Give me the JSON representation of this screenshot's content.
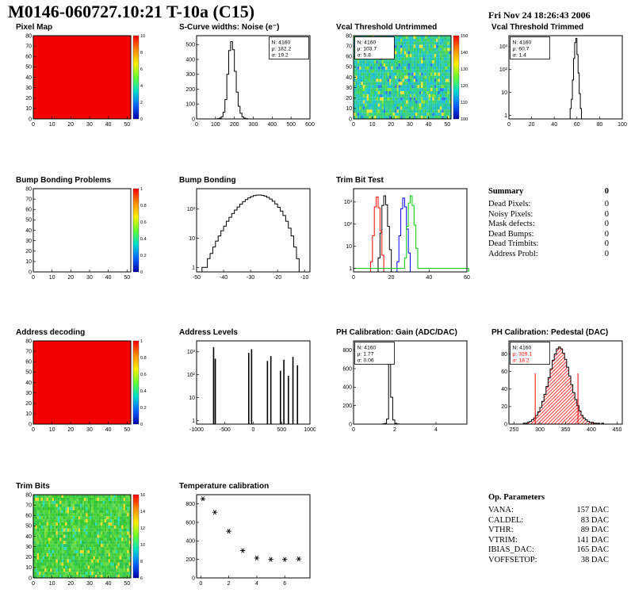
{
  "header": {
    "title": "M0146-060727.10:21 T-10a (C15)",
    "date": "Fri Nov 24 18:26:43 2006"
  },
  "summary": {
    "title": "Summary",
    "total": "0",
    "items": [
      {
        "label": "Dead Pixels:",
        "value": "0"
      },
      {
        "label": "Noisy Pixels:",
        "value": "0"
      },
      {
        "label": "Mask defects:",
        "value": "0"
      },
      {
        "label": "Dead Bumps:",
        "value": "0"
      },
      {
        "label": "Dead Trimbits:",
        "value": "0"
      },
      {
        "label": "Address Probl:",
        "value": "0"
      }
    ]
  },
  "op_parameters": {
    "title": "Op. Parameters",
    "items": [
      {
        "label": "VANA:",
        "value": "157 DAC"
      },
      {
        "label": "CALDEL:",
        "value": "83 DAC"
      },
      {
        "label": "VTHR:",
        "value": "89 DAC"
      },
      {
        "label": "VTRIM:",
        "value": "141 DAC"
      },
      {
        "label": "IBIAS_DAC:",
        "value": "165 DAC"
      },
      {
        "label": "VOFFSETOP:",
        "value": "38 DAC"
      }
    ]
  },
  "chart_data": [
    {
      "title": "Pixel Map",
      "type": "heatmap",
      "x": {
        "min": 0,
        "max": 52,
        "ticks": [
          0,
          10,
          20,
          30,
          40,
          50
        ]
      },
      "y": {
        "min": 0,
        "max": 80,
        "ticks": [
          0,
          10,
          20,
          30,
          40,
          50,
          60,
          70,
          80
        ]
      },
      "map": {
        "style": "solid",
        "color": "#f40000"
      },
      "colorbar": {
        "stops": [
          "#ff0000",
          "#ff8800",
          "#ffee00",
          "#66ff33",
          "#00ddcc",
          "#0066ff",
          "#0000aa"
        ],
        "ticks": [
          "10",
          "8",
          "6",
          "4",
          "2",
          "0"
        ]
      }
    },
    {
      "title": "S-Curve widths: Noise (e⁻)",
      "type": "histogram",
      "x": {
        "min": 0,
        "max": 600,
        "ticks": [
          0,
          100,
          200,
          300,
          400,
          500,
          600
        ]
      },
      "y": {
        "min": 0,
        "max": 560,
        "ticks": [
          0,
          100,
          200,
          300,
          400,
          500
        ]
      },
      "stats": {
        "pos": "tr",
        "lines": [
          {
            "text": "N: 4160",
            "color": "#000000"
          },
          {
            "text": "μ: 182.2",
            "color": "#000000"
          },
          {
            "text": "σ: 19.2",
            "color": "#000000"
          }
        ]
      },
      "series": [
        {
          "color": "#000000",
          "x0": 110,
          "dx": 10,
          "counts": [
            2,
            5,
            15,
            45,
            130,
            300,
            460,
            520,
            465,
            320,
            180,
            85,
            38,
            14,
            5,
            2
          ]
        }
      ]
    },
    {
      "title": "Vcal Threshold Untrimmed",
      "type": "heatmap",
      "x": {
        "min": 0,
        "max": 52,
        "ticks": [
          0,
          10,
          20,
          30,
          40,
          50
        ]
      },
      "y": {
        "min": 0,
        "max": 80,
        "ticks": [
          0,
          10,
          20,
          30,
          40,
          50,
          60,
          70,
          80
        ]
      },
      "stats": {
        "pos": "tl",
        "lines": [
          {
            "text": "N: 4160",
            "color": "#000000"
          },
          {
            "text": "μ: 103.7",
            "color": "#000000"
          },
          {
            "text": "σ: 5.8",
            "color": "#000000"
          }
        ]
      },
      "map": {
        "style": "noise",
        "palette": [
          "#2fd0a0",
          "#2bc98f",
          "#38d077",
          "#27c6b8",
          "#1fb9d6",
          "#44d45e",
          "#33cd8a",
          "#29c4cf",
          "#57d94b",
          "#2ecf9b",
          "#1fc2c2",
          "#3bd26b",
          "#ffe23a",
          "#2f79e8",
          "#2ad0ae",
          "#43d455",
          "#26c5c5",
          "#31cd7e",
          "#8fe23a",
          "#24bfe0"
        ]
      },
      "colorbar": {
        "stops": [
          "#ff0000",
          "#ff8800",
          "#ffee00",
          "#66ff33",
          "#00ddcc",
          "#0066ff",
          "#0000aa"
        ],
        "ticks": [
          "150",
          "140",
          "130",
          "120",
          "110",
          "100"
        ]
      }
    },
    {
      "title": "Vcal Threshold Trimmed",
      "type": "histogram",
      "x": {
        "min": 0,
        "max": 100,
        "ticks": [
          0,
          20,
          40,
          60,
          80,
          100
        ]
      },
      "y": {
        "log": true,
        "min": 0.7,
        "max": 3000,
        "ticks": [
          {
            "v": 1,
            "label": "1"
          },
          {
            "v": 10,
            "label": "10"
          },
          {
            "v": 100,
            "label": "10²"
          },
          {
            "v": 1000,
            "label": "10³"
          }
        ]
      },
      "stats": {
        "pos": "tl",
        "lines": [
          {
            "text": "N: 4160",
            "color": "#000000"
          },
          {
            "text": "μ: 60.7",
            "color": "#000000"
          },
          {
            "text": "σ: 1.4",
            "color": "#000000"
          }
        ]
      },
      "series": [
        {
          "color": "#000000",
          "x0": 54,
          "dx": 1,
          "counts": [
            2,
            5,
            35,
            300,
            1500,
            2300,
            450,
            70,
            9,
            2
          ]
        }
      ]
    },
    {
      "title": "Bump Bonding Problems",
      "type": "heatmap",
      "x": {
        "min": 0,
        "max": 52,
        "ticks": [
          0,
          10,
          20,
          30,
          40,
          50
        ]
      },
      "y": {
        "min": 0,
        "max": 80,
        "ticks": [
          0,
          10,
          20,
          30,
          40,
          50,
          60,
          70,
          80
        ]
      },
      "map": {
        "style": "empty"
      },
      "colorbar": {
        "stops": [
          "#ff0000",
          "#ff8800",
          "#ffee00",
          "#66ff33",
          "#00ddcc",
          "#0066ff",
          "#0000aa"
        ],
        "ticks": [
          "1",
          "0.8",
          "0.6",
          "0.4",
          "0.2",
          "0"
        ]
      }
    },
    {
      "title": "Bump Bonding",
      "type": "histogram",
      "x": {
        "min": -50,
        "max": -8,
        "ticks": [
          -50,
          -40,
          -30,
          -20,
          -10
        ]
      },
      "y": {
        "log": true,
        "min": 0.7,
        "max": 500,
        "ticks": [
          {
            "v": 1,
            "label": "1"
          },
          {
            "v": 10,
            "label": "10"
          },
          {
            "v": 100,
            "label": "10²"
          }
        ]
      },
      "series": [
        {
          "color": "#000000",
          "x0": -48,
          "dx": 1,
          "counts": [
            1,
            1,
            2,
            3,
            5,
            8,
            12,
            18,
            26,
            38,
            52,
            70,
            92,
            118,
            148,
            180,
            212,
            242,
            268,
            288,
            300,
            302,
            295,
            278,
            252,
            220,
            185,
            150,
            115,
            85,
            60,
            38,
            22,
            12,
            5,
            2
          ]
        }
      ]
    },
    {
      "title": "Trim Bit Test",
      "type": "histogram",
      "x": {
        "min": 0,
        "max": 60,
        "ticks": [
          0,
          20,
          40,
          60
        ]
      },
      "y": {
        "log": true,
        "min": 0.7,
        "max": 4000,
        "ticks": [
          {
            "v": 1,
            "label": "1"
          },
          {
            "v": 10,
            "label": "10"
          },
          {
            "v": 100,
            "label": "10²"
          },
          {
            "v": 1000,
            "label": "10³"
          }
        ]
      },
      "series": [
        {
          "color": "#000000",
          "x0": 13,
          "dx": 1,
          "counts": [
            3,
            40,
            700,
            1900,
            750,
            80,
            7
          ]
        },
        {
          "color": "#ff0000",
          "x0": 9,
          "dx": 1,
          "counts": [
            2,
            30,
            600,
            1700,
            550,
            50,
            4
          ]
        },
        {
          "color": "#0000ff",
          "x0": 23,
          "dx": 1,
          "counts": [
            2,
            30,
            500,
            1500,
            600,
            60,
            5
          ]
        },
        {
          "color": "#00cc00",
          "x0": 0,
          "dx": 1,
          "counts": [
            1,
            1,
            1,
            1,
            1,
            1,
            1,
            1,
            1,
            1,
            1,
            1,
            1,
            1,
            1,
            1,
            1,
            1,
            1,
            1,
            1,
            1,
            1,
            1,
            1,
            1,
            1,
            3,
            80,
            900,
            1900,
            700,
            90,
            8,
            1,
            1,
            1,
            1,
            1,
            1,
            1,
            1,
            1,
            1,
            1,
            1,
            1,
            1,
            1,
            1,
            1,
            1,
            1,
            1,
            1,
            1,
            1,
            1,
            1,
            1,
            1
          ]
        }
      ]
    },
    {
      "title": "Address decoding",
      "type": "heatmap",
      "x": {
        "min": 0,
        "max": 52,
        "ticks": [
          0,
          10,
          20,
          30,
          40,
          50
        ]
      },
      "y": {
        "min": 0,
        "max": 80,
        "ticks": [
          0,
          10,
          20,
          30,
          40,
          50,
          60,
          70,
          80
        ]
      },
      "map": {
        "style": "solid",
        "color": "#f40000"
      },
      "colorbar": {
        "stops": [
          "#ff0000",
          "#ff8800",
          "#ffee00",
          "#66ff33",
          "#00ddcc",
          "#0066ff",
          "#0000aa"
        ],
        "ticks": [
          "1",
          "0.8",
          "0.6",
          "0.4",
          "0.2",
          "0"
        ]
      }
    },
    {
      "title": "Address Levels",
      "type": "histogram",
      "x": {
        "min": -1000,
        "max": 1000,
        "ticks": [
          -1000,
          -500,
          0,
          500,
          1000
        ]
      },
      "y": {
        "log": true,
        "min": 0.7,
        "max": 3000,
        "ticks": [
          {
            "v": 1,
            "label": "1"
          },
          {
            "v": 10,
            "label": "10"
          },
          {
            "v": 100,
            "label": "10²"
          },
          {
            "v": 1000,
            "label": "10³"
          }
        ]
      },
      "series": [
        {
          "color": "#000000",
          "width": 1.6,
          "spikes": [
            [
              -700,
              1600
            ],
            [
              -670,
              500
            ],
            [
              -80,
              900
            ],
            [
              -30,
              1300
            ],
            [
              250,
              400
            ],
            [
              310,
              650
            ],
            [
              480,
              150
            ],
            [
              540,
              450
            ],
            [
              620,
              90
            ],
            [
              700,
              600
            ],
            [
              780,
              260
            ]
          ]
        }
      ]
    },
    {
      "title": "PH Calibration: Gain (ADC/DAC)",
      "type": "histogram",
      "x": {
        "min": 0,
        "max": 5.5,
        "ticks": [
          0,
          2,
          4
        ]
      },
      "y": {
        "min": 0,
        "max": 900,
        "ticks": [
          0,
          200,
          400,
          600,
          800
        ]
      },
      "stats": {
        "pos": "tl",
        "lines": [
          {
            "text": "N: 4160",
            "color": "#000000"
          },
          {
            "text": "μ: 1.77",
            "color": "#000000"
          },
          {
            "text": "σ: 0.06",
            "color": "#000000"
          }
        ]
      },
      "series": [
        {
          "color": "#000000",
          "x0": 1.4,
          "dx": 0.1,
          "counts": [
            2,
            8,
            55,
            830,
            290,
            45,
            9,
            2
          ]
        }
      ]
    },
    {
      "title": "PH Calibration: Pedestal (DAC)",
      "type": "histogram",
      "x": {
        "min": 240,
        "max": 460,
        "ticks": [
          250,
          300,
          350,
          400,
          450
        ]
      },
      "y": {
        "min": 0,
        "max": 95,
        "ticks": [
          0,
          20,
          40,
          60,
          80
        ]
      },
      "stats": {
        "pos": "tl",
        "lines": [
          {
            "text": "N: 4160",
            "color": "#000000"
          },
          {
            "text": "μ: 329.1",
            "color": "#ff0000"
          },
          {
            "text": "σ: 18.2",
            "color": "#ff0000"
          }
        ]
      },
      "series": [
        {
          "color": "#000000",
          "fill": "hatch",
          "x0": 268,
          "dx": 4,
          "counts": [
            1,
            1,
            2,
            3,
            5,
            7,
            10,
            14,
            19,
            26,
            34,
            43,
            53,
            63,
            73,
            80,
            86,
            88,
            86,
            81,
            74,
            65,
            55,
            45,
            36,
            28,
            21,
            15,
            10,
            7,
            5,
            3,
            2,
            2,
            1,
            1,
            1,
            0,
            1
          ]
        }
      ],
      "vlines": [
        {
          "x": 291,
          "y": 58,
          "color": "#ff0000"
        },
        {
          "x": 374,
          "y": 58,
          "color": "#ff0000"
        }
      ]
    },
    {
      "title": "Trim Bits",
      "type": "heatmap",
      "x": {
        "min": 0,
        "max": 52,
        "ticks": [
          0,
          10,
          20,
          30,
          40,
          50
        ]
      },
      "y": {
        "min": 0,
        "max": 80,
        "ticks": [
          0,
          10,
          20,
          30,
          40,
          50,
          60,
          70,
          80
        ]
      },
      "map": {
        "style": "noise",
        "palette": [
          "#3fcb2c",
          "#4ad338",
          "#33c622",
          "#58d647",
          "#2dbf33",
          "#68da3c",
          "#45cf4f",
          "#2bc157",
          "#7adf36",
          "#3bca43",
          "#4fd634",
          "#30c34d",
          "#5ad84f",
          "#37c93b",
          "#ffda2e",
          "#2cdcb4",
          "#47d142",
          "#3acd33",
          "#65d948",
          "#34c53e"
        ]
      },
      "colorbar": {
        "stops": [
          "#ff0000",
          "#ff8800",
          "#ffee00",
          "#66ff33",
          "#00ddcc",
          "#0066ff",
          "#0000aa"
        ],
        "ticks": [
          "16",
          "14",
          "12",
          "10",
          "8",
          "6"
        ]
      }
    },
    {
      "title": "Temperature calibration",
      "type": "scatter",
      "x": {
        "min": -0.3,
        "max": 7.8,
        "ticks": [
          0,
          2,
          4,
          6
        ]
      },
      "y": {
        "min": 0,
        "max": 900,
        "ticks": [
          0,
          200,
          400,
          600,
          800
        ]
      },
      "marker": "asterisk",
      "points": [
        [
          0.15,
          855
        ],
        [
          1,
          710
        ],
        [
          2,
          505
        ],
        [
          3,
          295
        ],
        [
          4,
          215
        ],
        [
          5,
          200
        ],
        [
          6,
          200
        ],
        [
          7,
          205
        ]
      ]
    }
  ]
}
